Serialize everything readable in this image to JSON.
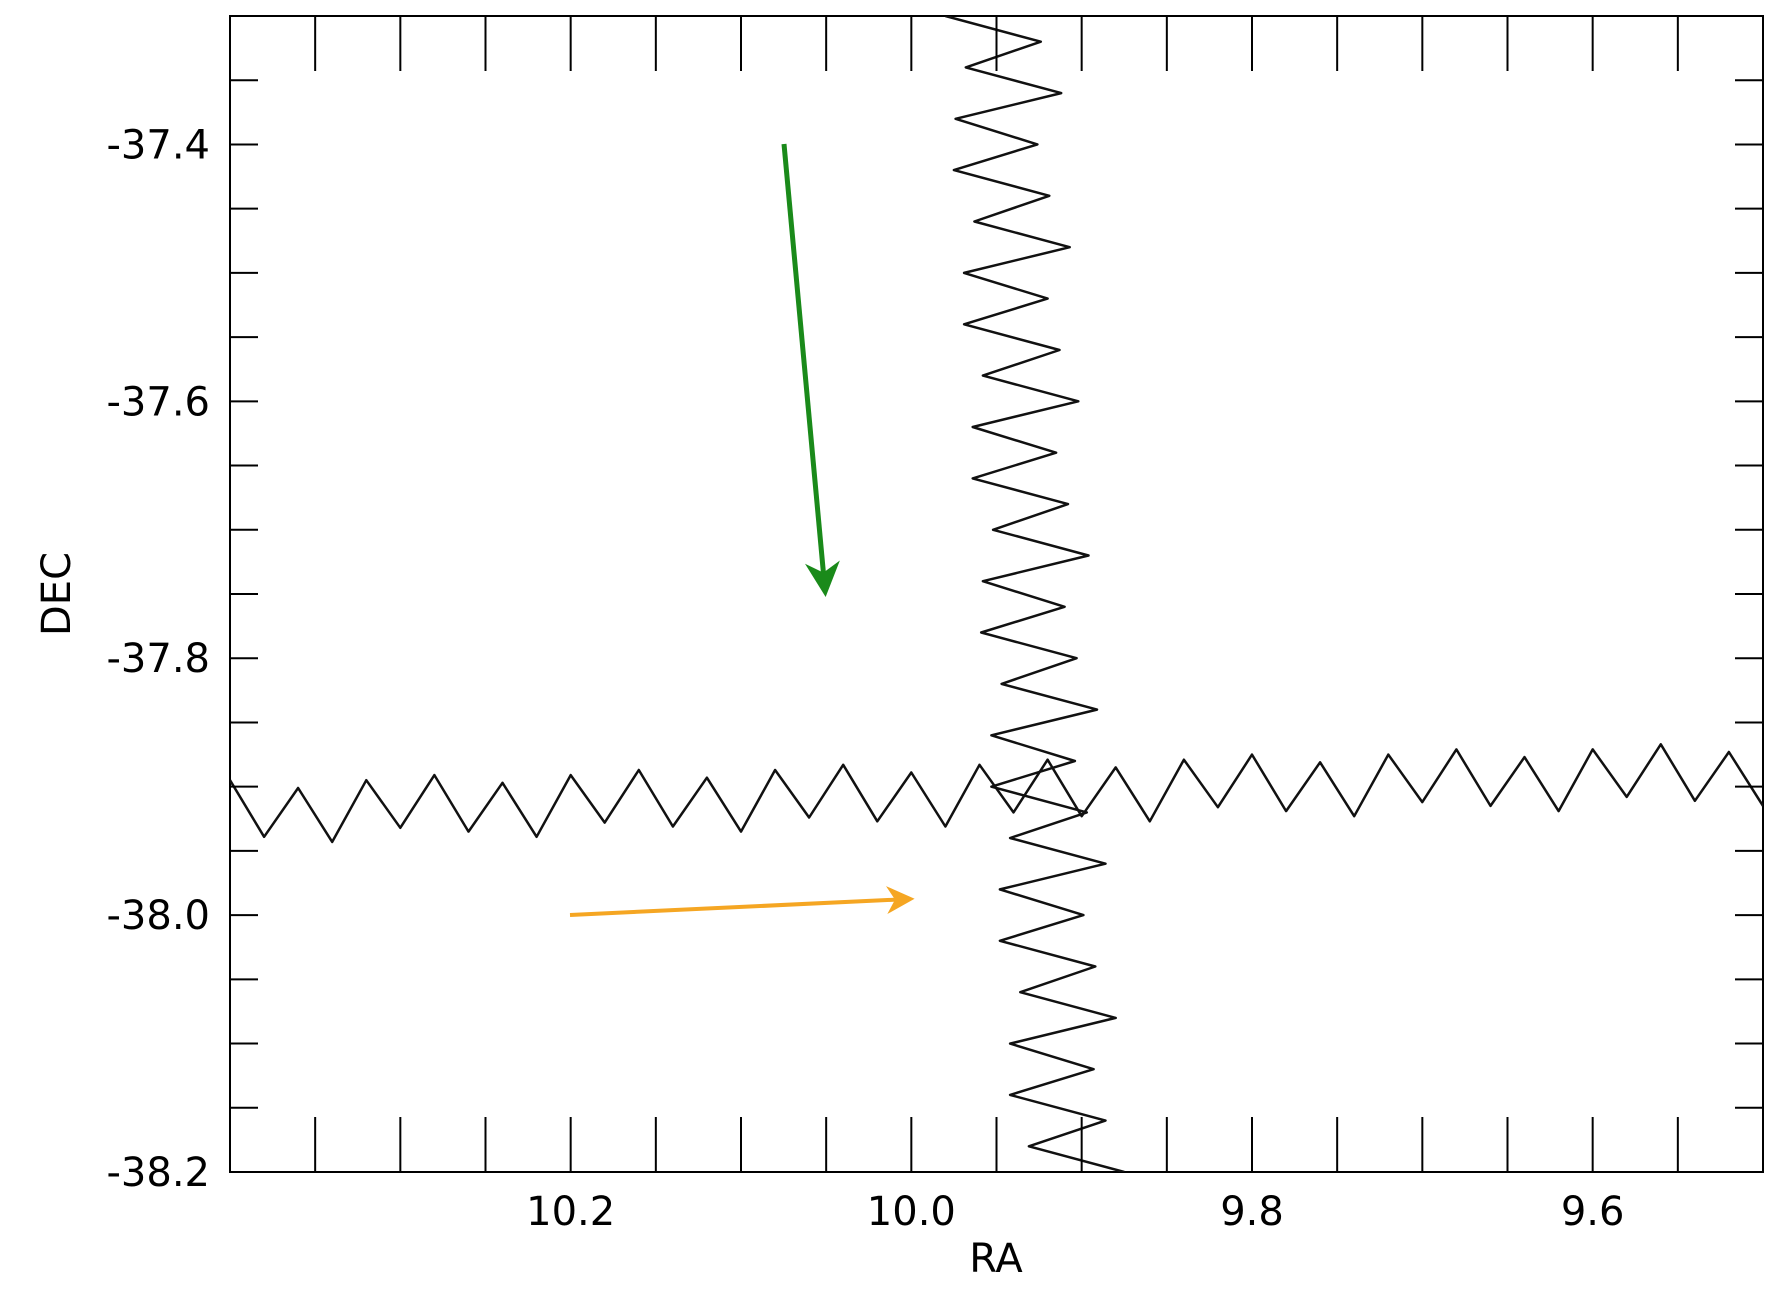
{
  "chart_data": {
    "type": "line",
    "xlabel": "RA",
    "ylabel": "DEC",
    "xlim": [
      10.4,
      9.5
    ],
    "ylim": [
      -38.2,
      -37.3
    ],
    "xticks": [
      10.2,
      {
        "value": 10,
        "label": "10.0"
      },
      9.8,
      9.6
    ],
    "yticks": [
      -37.4,
      -37.6,
      -37.8,
      {
        "value": -38,
        "label": "-38.0"
      },
      -38.2
    ],
    "xminor_ticks": [
      10.35,
      10.3,
      10.25,
      10.15,
      10.1,
      10.05,
      9.95,
      9.9,
      9.85,
      9.75,
      9.7,
      9.65,
      9.55
    ],
    "yminor_ticks": [
      -37.35,
      -37.45,
      -37.5,
      -37.55,
      -37.65,
      -37.7,
      -37.75,
      -37.85,
      -37.9,
      -37.95,
      -38.05,
      -38.1,
      -38.15
    ],
    "series": [
      {
        "color": "#111111",
        "x": [
          9.98,
          9.924,
          9.968,
          9.912,
          9.974,
          9.926,
          9.975,
          9.919,
          9.963,
          9.907,
          9.969,
          9.92,
          9.969,
          9.913,
          9.958,
          9.902,
          9.964,
          9.915,
          9.964,
          9.908,
          9.952,
          9.896,
          9.958,
          9.91,
          9.959,
          9.903,
          9.947,
          9.891,
          9.953,
          9.904,
          9.953,
          9.897,
          9.942,
          9.886,
          9.948,
          9.899,
          9.948,
          9.892,
          9.936,
          9.88,
          9.942,
          9.893,
          9.942,
          9.886,
          9.931,
          9.875
        ],
        "values": [
          -37.3,
          -37.32,
          -37.34,
          -37.36,
          -37.38,
          -37.4,
          -37.42,
          -37.44,
          -37.46,
          -37.48,
          -37.5,
          -37.52,
          -37.54,
          -37.56,
          -37.58,
          -37.6,
          -37.62,
          -37.64,
          -37.66,
          -37.68,
          -37.7,
          -37.72,
          -37.74,
          -37.76,
          -37.78,
          -37.8,
          -37.82,
          -37.84,
          -37.86,
          -37.88,
          -37.9,
          -37.92,
          -37.94,
          -37.96,
          -37.98,
          -38.0,
          -38.02,
          -38.04,
          -38.06,
          -38.08,
          -38.1,
          -38.12,
          -38.14,
          -38.16,
          -38.18,
          -38.2
        ]
      },
      {
        "color": "#111111",
        "x": [
          10.4,
          10.38,
          10.36,
          10.34,
          10.32,
          10.3,
          10.28,
          10.26,
          10.24,
          10.22,
          10.2,
          10.18,
          10.16,
          10.14,
          10.12,
          10.1,
          10.08,
          10.06,
          10.04,
          10.02,
          10.0,
          9.98,
          9.96,
          9.94,
          9.92,
          9.9,
          9.88,
          9.86,
          9.84,
          9.82,
          9.8,
          9.78,
          9.76,
          9.74,
          9.72,
          9.7,
          9.68,
          9.66,
          9.64,
          9.62,
          9.6,
          9.58,
          9.56,
          9.54,
          9.52,
          9.5
        ],
        "values": [
          -37.895,
          -37.939,
          -37.901,
          -37.943,
          -37.895,
          -37.932,
          -37.891,
          -37.935,
          -37.897,
          -37.939,
          -37.891,
          -37.928,
          -37.887,
          -37.931,
          -37.893,
          -37.935,
          -37.887,
          -37.924,
          -37.883,
          -37.927,
          -37.889,
          -37.931,
          -37.883,
          -37.92,
          -37.879,
          -37.923,
          -37.885,
          -37.927,
          -37.879,
          -37.916,
          -37.875,
          -37.919,
          -37.881,
          -37.923,
          -37.875,
          -37.912,
          -37.871,
          -37.915,
          -37.877,
          -37.919,
          -37.871,
          -37.908,
          -37.867,
          -37.911,
          -37.873,
          -37.915
        ]
      }
    ]
  }
}
